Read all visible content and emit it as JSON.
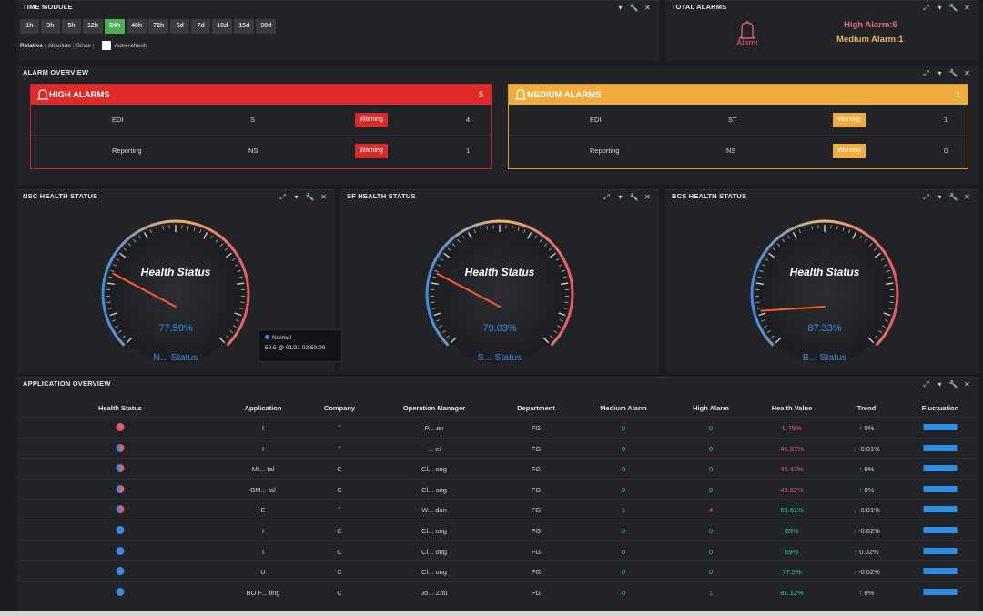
{
  "time_module": {
    "title": "TIME MODULE",
    "buttons": [
      "1h",
      "3h",
      "5h",
      "12h",
      "24h",
      "48h",
      "72h",
      "5d",
      "7d",
      "10d",
      "15d",
      "30d"
    ],
    "active_index": 4,
    "modes": [
      "Relative",
      "Absolute",
      "Since"
    ],
    "auto_refresh_label": "Auto-refresh"
  },
  "total_alarms": {
    "title": "TOTAL ALARMS",
    "bell_label": "Alarm",
    "high": "High Alarm:5",
    "medium": "Medium Alarm:1"
  },
  "alarm_overview": {
    "title": "ALARM OVERVIEW",
    "high": {
      "title": "HIGH ALARMS",
      "count": "5",
      "color": "#e02a2a",
      "rows": [
        {
          "app": "EDI",
          "code": "S",
          "badge": "Warning",
          "count": "4"
        },
        {
          "app": "Reporting",
          "code": "NS",
          "badge": "Warning",
          "count": "1"
        }
      ]
    },
    "medium": {
      "title": "MEDIUM ALARMS",
      "count": "1",
      "color": "#f0ad3e",
      "rows": [
        {
          "app": "EDI",
          "code": "ST",
          "badge": "Warning",
          "count": "1"
        },
        {
          "app": "Reporting",
          "code": "NS",
          "badge": "Warning",
          "count": "0"
        }
      ]
    }
  },
  "gauges": [
    {
      "title": "NSC HEALTH STATUS",
      "center_label": "Health Status",
      "value": "77.59%",
      "fraction": 0.7759,
      "bottom_label": "N... Status"
    },
    {
      "title": "SF HEALTH STATUS",
      "center_label": "Health Status",
      "value": "79.03%",
      "fraction": 0.7903,
      "bottom_label": "S... Status"
    },
    {
      "title": "BCS HEALTH STATUS",
      "center_label": "Health Status",
      "value": "87.33%",
      "fraction": 0.8733,
      "bottom_label": "B... Status"
    }
  ],
  "tooltip": {
    "series": "Normal",
    "text": "50.5 @ 01/21 03:50:00"
  },
  "app_overview": {
    "title": "APPLICATION OVERVIEW",
    "columns": [
      "Health Status",
      "Application",
      "Company",
      "Operation Manager",
      "Department",
      "Medium Alarm",
      "High Alarm",
      "Health Value",
      "Trend",
      "Fluctuation"
    ],
    "rows": [
      {
        "status": "red",
        "app": "I",
        "company": "˜",
        "manager": "P... an",
        "dept": "FG",
        "medium": "0",
        "high": "0",
        "health": "6.75%",
        "health_color": "#e4606d",
        "trend_dir": "up",
        "trend": "0%"
      },
      {
        "status": "mixed",
        "app": "I",
        "company": "˜",
        "manager": "... ei",
        "dept": "FG",
        "medium": "0",
        "high": "0",
        "health": "45.87%",
        "health_color": "#e4606d",
        "trend_dir": "down",
        "trend": "-0.01%"
      },
      {
        "status": "mixed",
        "app": "MI... tal",
        "company": "C",
        "manager": "Cl... ong",
        "dept": "FG",
        "medium": "0",
        "high": "0",
        "health": "46.47%",
        "health_color": "#e4606d",
        "trend_dir": "up",
        "trend": "0%"
      },
      {
        "status": "mixed",
        "app": "BM... tal",
        "company": "C",
        "manager": "Cl... ong",
        "dept": "FG",
        "medium": "0",
        "high": "0",
        "health": "49.82%",
        "health_color": "#e4606d",
        "trend_dir": "up",
        "trend": "0%"
      },
      {
        "status": "mixed",
        "app": "E",
        "company": "˜",
        "manager": "W... dan",
        "dept": "FG",
        "medium": "1",
        "high": "4",
        "health": "60.61%",
        "health_color": "#2ecc9a",
        "trend_dir": "down",
        "trend": "-0.01%"
      },
      {
        "status": "blue",
        "app": "I",
        "company": "C",
        "manager": "Cl... ong",
        "dept": "FG",
        "medium": "0",
        "high": "0",
        "health": "65%",
        "health_color": "#2ecc9a",
        "trend_dir": "down",
        "trend": "-0.02%"
      },
      {
        "status": "blue",
        "app": "I",
        "company": "C",
        "manager": "Cl... ong",
        "dept": "FG",
        "medium": "0",
        "high": "0",
        "health": "69%",
        "health_color": "#2ecc9a",
        "trend_dir": "up",
        "trend": "0.02%"
      },
      {
        "status": "blue",
        "app": "U",
        "company": "C",
        "manager": "Cl... ong",
        "dept": "FG",
        "medium": "0",
        "high": "0",
        "health": "77.5%",
        "health_color": "#2ecc9a",
        "trend_dir": "down",
        "trend": "-0.02%"
      },
      {
        "status": "blue",
        "app": "BO F... ting",
        "company": "C",
        "manager": "Jo... Zhu",
        "dept": "FG",
        "medium": "0",
        "high": "1",
        "health": "81.12%",
        "health_color": "#2ecc9a",
        "trend_dir": "up",
        "trend": "0%"
      }
    ]
  },
  "colors": {
    "accent_green": "#4caf50",
    "high": "#e02a2a",
    "medium": "#f0ad3e",
    "gauge_value": "#3d8ee6",
    "zero_value": "#2ecc9a",
    "nonzero_value": "#e4606d"
  }
}
